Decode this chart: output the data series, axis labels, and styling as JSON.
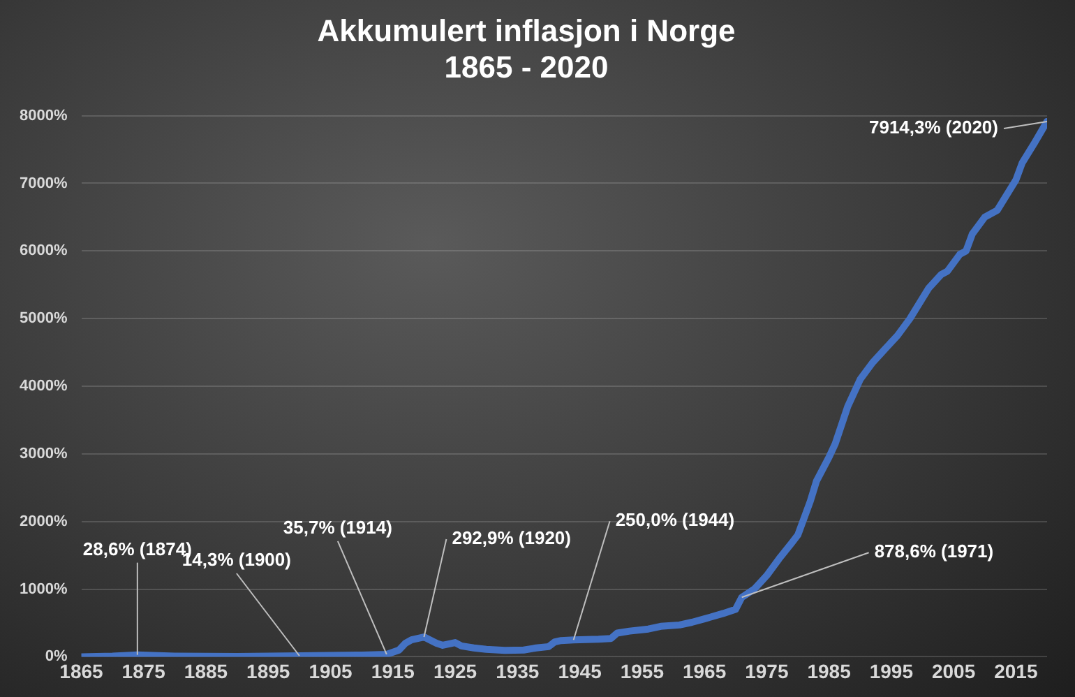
{
  "chart_data": {
    "type": "line",
    "title": "Akkumulert inflasjon i Norge\n1865 - 2020",
    "series": [
      {
        "color": "#4472c4",
        "x": [
          1865,
          1870,
          1874,
          1880,
          1890,
          1900,
          1910,
          1914,
          1916,
          1917,
          1918,
          1920,
          1922,
          1923,
          1925,
          1926,
          1928,
          1930,
          1933,
          1936,
          1938,
          1940,
          1941,
          1942,
          1944,
          1948,
          1950,
          1951,
          1953,
          1956,
          1958,
          1961,
          1963,
          1965,
          1968,
          1970,
          1971,
          1973,
          1975,
          1977,
          1979,
          1980,
          1982,
          1983,
          1985,
          1986,
          1988,
          1990,
          1992,
          1994,
          1996,
          1998,
          2000,
          2001,
          2003,
          2004,
          2006,
          2007,
          2008,
          2010,
          2012,
          2014,
          2015,
          2016,
          2018,
          2020
        ],
        "values": [
          0,
          10,
          28.6,
          10,
          5,
          14.3,
          25,
          35.7,
          100,
          200,
          250,
          292.9,
          200,
          170,
          210,
          160,
          130,
          110,
          95,
          100,
          130,
          150,
          220,
          240,
          250.0,
          260,
          270,
          350,
          380,
          410,
          450,
          470,
          510,
          560,
          640,
          700,
          878.6,
          1000,
          1200,
          1450,
          1680,
          1800,
          2300,
          2600,
          2950,
          3150,
          3700,
          4100,
          4350,
          4550,
          4750,
          5000,
          5300,
          5450,
          5650,
          5700,
          5950,
          6000,
          6250,
          6500,
          6600,
          6900,
          7050,
          7300,
          7600,
          7914.3
        ]
      }
    ],
    "xlim": [
      1865,
      2020
    ],
    "xticks": [
      1865,
      1875,
      1885,
      1895,
      1905,
      1915,
      1925,
      1935,
      1945,
      1955,
      1965,
      1975,
      1985,
      1995,
      2005,
      2015
    ],
    "ylim": [
      0,
      8000
    ],
    "yticks": [
      {
        "value": 0,
        "label": "0%"
      },
      {
        "value": 1000,
        "label": "1000%"
      },
      {
        "value": 2000,
        "label": "2000%"
      },
      {
        "value": 3000,
        "label": "3000%"
      },
      {
        "value": 4000,
        "label": "4000%"
      },
      {
        "value": 5000,
        "label": "5000%"
      },
      {
        "value": 6000,
        "label": "6000%"
      },
      {
        "value": 7000,
        "label": "7000%"
      },
      {
        "value": 8000,
        "label": "8000%"
      }
    ],
    "grid": "y",
    "legend": false,
    "marker": "none",
    "line_style": "solid",
    "annotations": [
      {
        "text": "28,6% (1874)",
        "x": 1874,
        "y": 28.6
      },
      {
        "text": "14,3% (1900)",
        "x": 1900,
        "y": 14.3
      },
      {
        "text": "35,7% (1914)",
        "x": 1914,
        "y": 35.7
      },
      {
        "text": "292,9% (1920)",
        "x": 1920,
        "y": 292.9
      },
      {
        "text": "250,0% (1944)",
        "x": 1944,
        "y": 250.0
      },
      {
        "text": "878,6% (1971)",
        "x": 1971,
        "y": 878.6
      },
      {
        "text": "7914,3% (2020)",
        "x": 2020,
        "y": 7914.3
      }
    ]
  }
}
